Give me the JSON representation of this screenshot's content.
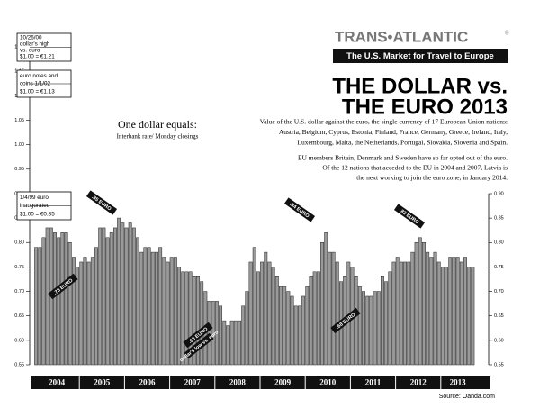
{
  "chart_data": {
    "type": "bar",
    "brand": "TRANS•ATLANTIC",
    "brand_mark": "®",
    "tagline": "The U.S. Market for Travel to Europe",
    "title_lines": [
      "THE DOLLAR vs.",
      "THE EURO 2013"
    ],
    "description": [
      "Value of the U.S. dollar against the euro, the single currency of 17 European Union nations:",
      "Austria, Belgium, Cyprus, Estonia, Finland, France, Germany, Greece, Ireland, Italy,",
      "Luxembourg, Malta, the Netherlands, Portugal, Slovakia, Slovenia and Spain."
    ],
    "note": [
      "EU members Britain, Denmark and Sweden have so far opted out of the euro.",
      "Of the 12 nations that acceded to the EU in 2004 and 2007, Latvia is",
      "the next working to join the euro zone, in January 2014."
    ],
    "subtitle": "One dollar equals:",
    "subtitle_note": "Interbank rate/ Monday closings",
    "source": "Source: Oanda.com",
    "history_notes": [
      {
        "lines": [
          "10/26/00",
          "dollar's high",
          "vs. euro",
          "$1.00 = €1.21"
        ]
      },
      {
        "lines": [
          "euro notes and",
          "coins 1/1/02",
          "$1.00 = €1.13"
        ]
      },
      {
        "lines": [
          "1/4/99 euro",
          "inaugurated",
          "$1.00 = €0.85"
        ]
      }
    ],
    "annotations": [
      ".73 EURO",
      ".85 EURO",
      ".63 EURO",
      "dollar's low vs. euro",
      ".84 EURO",
      ".68 EURO",
      ".83 EURO"
    ],
    "years": [
      "2004",
      "2005",
      "2006",
      "2007",
      "2008",
      "2009",
      "2010",
      "2011",
      "2012",
      "2013"
    ],
    "values": [
      0.79,
      0.79,
      0.81,
      0.83,
      0.83,
      0.82,
      0.81,
      0.82,
      0.82,
      0.8,
      0.77,
      0.75,
      0.76,
      0.77,
      0.76,
      0.77,
      0.79,
      0.83,
      0.83,
      0.81,
      0.82,
      0.83,
      0.85,
      0.84,
      0.83,
      0.84,
      0.83,
      0.81,
      0.78,
      0.79,
      0.79,
      0.78,
      0.78,
      0.79,
      0.77,
      0.76,
      0.77,
      0.77,
      0.75,
      0.74,
      0.74,
      0.74,
      0.73,
      0.73,
      0.72,
      0.7,
      0.68,
      0.68,
      0.68,
      0.67,
      0.64,
      0.63,
      0.64,
      0.64,
      0.64,
      0.67,
      0.7,
      0.76,
      0.79,
      0.74,
      0.76,
      0.78,
      0.76,
      0.75,
      0.73,
      0.71,
      0.71,
      0.7,
      0.69,
      0.67,
      0.67,
      0.69,
      0.71,
      0.73,
      0.74,
      0.74,
      0.8,
      0.82,
      0.78,
      0.78,
      0.76,
      0.72,
      0.73,
      0.76,
      0.75,
      0.73,
      0.71,
      0.7,
      0.69,
      0.69,
      0.7,
      0.7,
      0.73,
      0.72,
      0.74,
      0.76,
      0.77,
      0.76,
      0.76,
      0.76,
      0.78,
      0.8,
      0.81,
      0.8,
      0.78,
      0.77,
      0.78,
      0.76,
      0.75,
      0.75,
      0.77,
      0.77,
      0.77,
      0.76,
      0.77,
      0.75,
      0.75
    ],
    "color": "#9a9a9a",
    "ylim": [
      0.55,
      1.2
    ],
    "yticks": [
      {
        "value": 0.55,
        "label": "0.55"
      },
      {
        "value": 0.6,
        "label": "0.60"
      },
      {
        "value": 0.65,
        "label": "0.65"
      },
      {
        "value": 0.7,
        "label": "0.70"
      },
      {
        "value": 0.75,
        "label": "0.75"
      },
      {
        "value": 0.8,
        "label": "0.80"
      },
      {
        "value": 0.85,
        "label": "0.85"
      },
      {
        "value": 0.9,
        "label": "0.90"
      },
      {
        "value": 0.95,
        "label": "0.95"
      },
      {
        "value": 1.0,
        "label": "1.00"
      },
      {
        "value": 1.05,
        "label": "1.05"
      },
      {
        "value": 1.1,
        "label": "1.10"
      },
      {
        "value": 1.15,
        "label": "1.15"
      },
      {
        "value": 1.2,
        "label": "1.20"
      }
    ],
    "y2lim": [
      0.55,
      0.9
    ],
    "y2ticks": [
      {
        "value": 0.55,
        "label": "0.55"
      },
      {
        "value": 0.6,
        "label": "0.60"
      },
      {
        "value": 0.65,
        "label": "0.65"
      },
      {
        "value": 0.7,
        "label": "0.70"
      },
      {
        "value": 0.75,
        "label": "0.75"
      },
      {
        "value": 0.8,
        "label": "0.80"
      },
      {
        "value": 0.85,
        "label": "0.85"
      },
      {
        "value": 0.9,
        "label": "0.90"
      }
    ]
  }
}
